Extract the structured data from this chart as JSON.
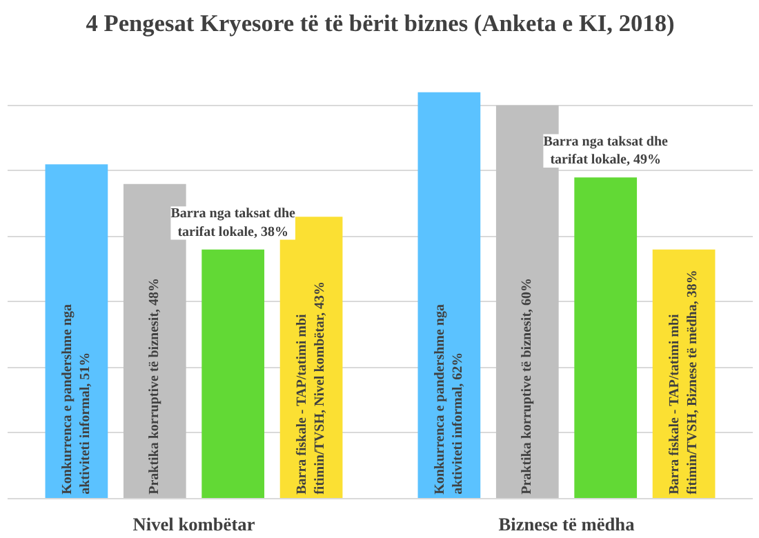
{
  "chart_data": {
    "type": "bar",
    "title": "4 Pengesat Kryesore të të bërit biznes (Anketa e KI, 2018)",
    "categories": [
      "Nivel kombëtar",
      "Biznese të mëdha"
    ],
    "series": [
      {
        "color": "#5bc2ff",
        "values": [
          51,
          62
        ],
        "value_labels": [
          "Konkurrenca e pandershme nga\naktiviteti informal, 51%",
          "Konkurrenca e pandershme nga\naktiviteti informal, 62%"
        ]
      },
      {
        "color": "#bfbfbf",
        "values": [
          48,
          60
        ],
        "value_labels": [
          "Praktika korruptive të biznesit, 48%",
          "Praktika korruptive të biznesit, 60%"
        ]
      },
      {
        "color": "#62d935",
        "values": [
          38,
          49
        ],
        "value_labels": [
          "Barra nga taksat dhe\ntarifat lokale, 38%",
          "Barra nga taksat dhe\ntarifat lokale, 49%"
        ]
      },
      {
        "color": "#fbe033",
        "values": [
          43,
          38
        ],
        "value_labels": [
          "Barra fiskale - TAP/tatimi mbi\nfitimin/TVSH, Nivel kombëtar, 43%",
          "Barra fiskale - TAP/tatimi mbi\nfitimin/TVSH, Biznese të mëdha, 38%"
        ]
      }
    ],
    "yticks": [
      {
        "value": 0,
        "label": null
      },
      {
        "value": 10,
        "label": null
      },
      {
        "value": 20,
        "label": null
      },
      {
        "value": 30,
        "label": null
      },
      {
        "value": 40,
        "label": null
      },
      {
        "value": 50,
        "label": null
      },
      {
        "value": 60,
        "label": null
      }
    ],
    "grid": "y",
    "tick_labels": "x"
  }
}
